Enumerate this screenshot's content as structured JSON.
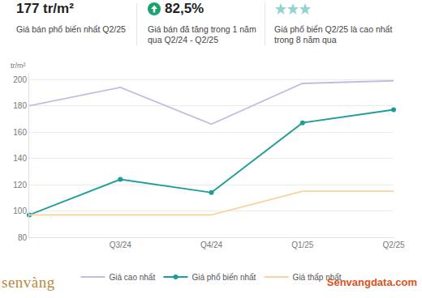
{
  "header": {
    "stat1": {
      "value": "177 tr/m²",
      "label": "Giá bán phổ biến nhất Q2/25"
    },
    "stat2": {
      "value": "82,5%",
      "label": "Giá bán đã tăng trong 1 năm qua Q2/24 - Q2/25"
    },
    "stat3": {
      "label": "Giá phổ biến Q2/25 là cao nhất trong 8 năm qua"
    }
  },
  "brand": {
    "left": "senvàng",
    "right": "Senvangdata.com"
  },
  "chart_data": {
    "type": "line",
    "y_label": "tr/m²",
    "categories": [
      null,
      "Q3/24",
      "Q4/24",
      "Q1/25",
      "Q2/25"
    ],
    "series": [
      {
        "name": "Giá cao nhất",
        "color": "#c9badf",
        "marker": "none",
        "values": [
          180,
          194,
          166,
          197,
          199
        ]
      },
      {
        "name": "Giá phổ biến nhất",
        "color": "#1c9d98",
        "marker": "circle",
        "values": [
          97,
          124,
          114,
          167,
          177
        ]
      },
      {
        "name": "Giá thấp nhất",
        "color": "#f8d49c",
        "marker": "none",
        "values": [
          97,
          97,
          97,
          115,
          115
        ]
      }
    ],
    "ylim": [
      80,
      205
    ],
    "yticks": [
      80,
      100,
      120,
      140,
      160,
      180,
      200
    ],
    "grid": true,
    "legend": "bottom"
  }
}
